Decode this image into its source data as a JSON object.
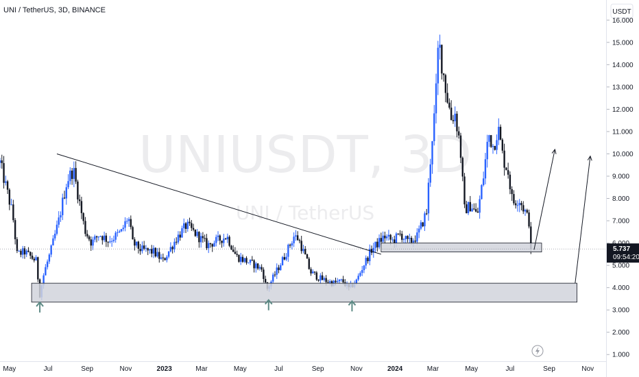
{
  "header": {
    "title": "UNI / TetherUS, 3D, BINANCE"
  },
  "watermark": {
    "line1": "UNIUSDT, 3D",
    "line2": "UNI / TetherUS"
  },
  "price_axis": {
    "currency": "USDT"
  },
  "last_price": {
    "value": "5.737",
    "countdown": "09:54:20",
    "color": "#131722"
  },
  "colors": {
    "up": "#2962ff",
    "down": "#131722",
    "zone_fill": "#d1d4dc",
    "zone_stroke": "#131722",
    "arrow": "#5d8a85",
    "line": "#131722"
  },
  "icons": {
    "bolt": "lightning-bolt-icon"
  },
  "chart_data": {
    "type": "candlestick",
    "title": "UNI / TetherUS, 3D, BINANCE",
    "y_axis": {
      "ticks": [
        "1.000",
        "2.000",
        "3.000",
        "4.000",
        "5.000",
        "6.000",
        "7.000",
        "8.000",
        "9.000",
        "10.000",
        "11.000",
        "12.000",
        "13.000",
        "14.000",
        "15.000",
        "16.000"
      ],
      "ylim": [
        0.7,
        16.9
      ]
    },
    "x_axis": {
      "ticks": [
        "May",
        "Jul",
        "Sep",
        "Nov",
        "2023",
        "Mar",
        "May",
        "Jul",
        "Sep",
        "Nov",
        "2024",
        "Mar",
        "May",
        "Jul",
        "Sep",
        "Nov"
      ],
      "xlim": [
        "2022-04-16",
        "2024-11-30"
      ]
    },
    "series_close_path": [
      [
        "2022-04-16",
        9.6
      ],
      [
        "2022-05-06",
        7.3
      ],
      [
        "2022-05-13",
        5.5
      ],
      [
        "2022-05-25",
        5.6
      ],
      [
        "2022-06-12",
        5.2
      ],
      [
        "2022-06-18",
        3.7
      ],
      [
        "2022-06-25",
        4.7
      ],
      [
        "2022-07-05",
        5.6
      ],
      [
        "2022-07-18",
        7.0
      ],
      [
        "2022-07-31",
        8.8
      ],
      [
        "2022-08-10",
        9.3
      ],
      [
        "2022-08-18",
        8.1
      ],
      [
        "2022-08-28",
        6.6
      ],
      [
        "2022-09-08",
        6.0
      ],
      [
        "2022-09-20",
        6.4
      ],
      [
        "2022-10-05",
        6.1
      ],
      [
        "2022-10-25",
        6.5
      ],
      [
        "2022-11-05",
        7.2
      ],
      [
        "2022-11-12",
        6.0
      ],
      [
        "2022-11-25",
        5.7
      ],
      [
        "2022-12-15",
        5.6
      ],
      [
        "2022-12-30",
        5.2
      ],
      [
        "2023-01-20",
        6.2
      ],
      [
        "2023-02-05",
        6.8
      ],
      [
        "2023-02-20",
        6.4
      ],
      [
        "2023-03-10",
        5.9
      ],
      [
        "2023-03-25",
        6.1
      ],
      [
        "2023-04-10",
        6.3
      ],
      [
        "2023-04-25",
        5.4
      ],
      [
        "2023-05-10",
        5.2
      ],
      [
        "2023-05-25",
        5.0
      ],
      [
        "2023-06-05",
        4.8
      ],
      [
        "2023-06-12",
        3.9
      ],
      [
        "2023-06-25",
        4.6
      ],
      [
        "2023-07-10",
        5.4
      ],
      [
        "2023-07-25",
        6.3
      ],
      [
        "2023-08-01",
        6.2
      ],
      [
        "2023-08-12",
        5.4
      ],
      [
        "2023-08-20",
        4.7
      ],
      [
        "2023-09-05",
        4.4
      ],
      [
        "2023-09-25",
        4.2
      ],
      [
        "2023-10-10",
        4.3
      ],
      [
        "2023-10-20",
        3.95
      ],
      [
        "2023-11-01",
        4.3
      ],
      [
        "2023-11-12",
        5.0
      ],
      [
        "2023-11-25",
        5.7
      ],
      [
        "2023-12-05",
        6.0
      ],
      [
        "2023-12-15",
        6.3
      ],
      [
        "2023-12-28",
        6.1
      ],
      [
        "2024-01-10",
        6.4
      ],
      [
        "2024-01-22",
        6.0
      ],
      [
        "2024-02-05",
        6.3
      ],
      [
        "2024-02-20",
        7.4
      ],
      [
        "2024-02-28",
        10.5
      ],
      [
        "2024-03-05",
        12.2
      ],
      [
        "2024-03-10",
        15.1
      ],
      [
        "2024-03-15",
        14.1
      ],
      [
        "2024-03-22",
        12.8
      ],
      [
        "2024-03-30",
        11.6
      ],
      [
        "2024-04-05",
        11.8
      ],
      [
        "2024-04-13",
        10.4
      ],
      [
        "2024-04-20",
        7.5
      ],
      [
        "2024-05-01",
        7.7
      ],
      [
        "2024-05-10",
        7.2
      ],
      [
        "2024-05-20",
        9.0
      ],
      [
        "2024-05-28",
        10.9
      ],
      [
        "2024-06-05",
        10.3
      ],
      [
        "2024-06-12",
        11.2
      ],
      [
        "2024-06-20",
        9.8
      ],
      [
        "2024-06-28",
        9.2
      ],
      [
        "2024-07-05",
        7.8
      ],
      [
        "2024-07-15",
        8.0
      ],
      [
        "2024-07-25",
        7.4
      ],
      [
        "2024-08-01",
        6.9
      ],
      [
        "2024-08-05",
        5.74
      ]
    ],
    "annotations": {
      "trendline": {
        "from": [
          "2022-07-15",
          10.0
        ],
        "to": [
          "2023-12-10",
          5.5
        ]
      },
      "support_zones": [
        {
          "x0": "2022-06-05",
          "x1": "2024-10-15",
          "y0": 3.35,
          "y1": 4.2
        },
        {
          "x0": "2023-12-10",
          "x1": "2024-08-20",
          "y0": 5.6,
          "y1": 6.0
        }
      ],
      "up_arrows": [
        {
          "x": "2022-06-18",
          "y": 3.1
        },
        {
          "x": "2023-06-15",
          "y": 3.2
        },
        {
          "x": "2023-10-25",
          "y": 3.15
        }
      ],
      "projection_lines": [
        {
          "from": [
            "2024-08-08",
            5.7
          ],
          "to": [
            "2024-09-10",
            10.2
          ]
        },
        {
          "from": [
            "2024-10-12",
            4.2
          ],
          "to": [
            "2024-11-05",
            9.9
          ]
        }
      ]
    }
  }
}
